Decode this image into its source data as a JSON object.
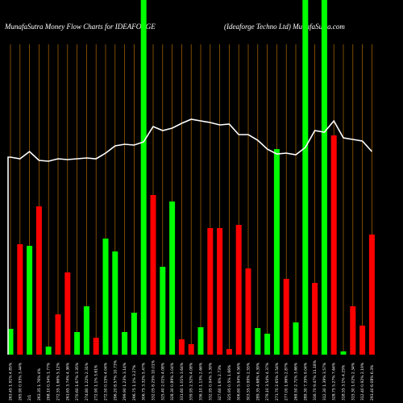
{
  "chart_data": {
    "type": "bar",
    "title": "MunafaSutra  Money Flow  Charts for IDEAFORGE",
    "subtitle": "(Ideaforge   Techno   Ltd) MunafaSutra.com",
    "categories": [
      "263.45 1.91% 4.85%",
      "265.90 0.93% 3.44%",
      "2/1",
      "263.35 1.76% 4%",
      "268.10 0.34% 1.77%",
      "272.55 1.66% 5.12%",
      "261.65 3.74% 4.36%",
      "270.60 1.67% 3.35%",
      "274.80 1.22% 2.31%",
      "272.90 1.1% 3.61%",
      "272.50 0.15% 4.04%",
      "296.20 8.57% 10.73%",
      "299.90 1.23% 3.14%",
      "296.75 1.1% 3.27%",
      "306.75 3.32% 5.47%",
      "332.05 8.25% 10.01%",
      "325.40 2.01% 4.08%",
      "328.30 0.89% 3.04%",
      "331.60 1.01% 3.64%",
      "339.95 2.52% 4.08%",
      "336.10 1.13% 2.66%",
      "332.95 0.94% 3.39%",
      "327.60 1.6% 2.73%",
      "325.95 0.5% 1.66%",
      "306.60 5.94% 6.56%",
      "303.55 0.99% 2.55%",
      "289.35 4.68% 6.39%",
      "279.10 3.54% 4.37%",
      "271.70 2.65% 3.54%",
      "277.00 1.96% 2.87%",
      "269.50 2.71% 3.66%",
      "289.30 7.35% 9.04%",
      "316.70 9.47% 11.18%",
      "312.30 1.39% 3.57%",
      "328.75 5.27% 7.64%",
      "318.55 3.1% 4.25%",
      "315.30 1.02% 2.34%",
      "312.40 0.92% 2.19%",
      "293.40 6.08% 6.3%"
    ],
    "values": [
      32,
      137,
      135,
      184,
      10,
      50,
      102,
      28,
      60,
      21,
      144,
      128,
      28,
      52,
      440,
      198,
      109,
      190,
      19,
      13,
      34,
      157,
      157,
      7,
      161,
      107,
      33,
      26,
      255,
      94,
      40,
      440,
      89,
      440,
      272,
      4,
      60,
      36,
      149
    ],
    "colors": [
      "#00ff00",
      "#ff0000",
      "#00ff00",
      "#ff0000",
      "#00ff00",
      "#ff0000",
      "#ff0000",
      "#00ff00",
      "#00ff00",
      "#ff0000",
      "#00ff00",
      "#00ff00",
      "#00ff00",
      "#00ff00",
      "#00ff00",
      "#ff0000",
      "#00ff00",
      "#00ff00",
      "#ff0000",
      "#ff0000",
      "#00ff00",
      "#ff0000",
      "#ff0000",
      "#ff0000",
      "#ff0000",
      "#ff0000",
      "#00ff00",
      "#00ff00",
      "#00ff00",
      "#ff0000",
      "#00ff00",
      "#00ff00",
      "#ff0000",
      "#00ff00",
      "#ff0000",
      "#00ff00",
      "#ff0000",
      "#ff0000",
      "#ff0000"
    ],
    "line": {
      "color": "#ffffff",
      "values": [
        245,
        243,
        252,
        241,
        240,
        243,
        242,
        243,
        244,
        243,
        250,
        259,
        261,
        260,
        264,
        283,
        278,
        281,
        287,
        292,
        290,
        288,
        285,
        286,
        273,
        273,
        266,
        255,
        249,
        250,
        248,
        257,
        278,
        276,
        290,
        269,
        267,
        265,
        252
      ]
    },
    "ylim": [
      0,
      440
    ]
  }
}
